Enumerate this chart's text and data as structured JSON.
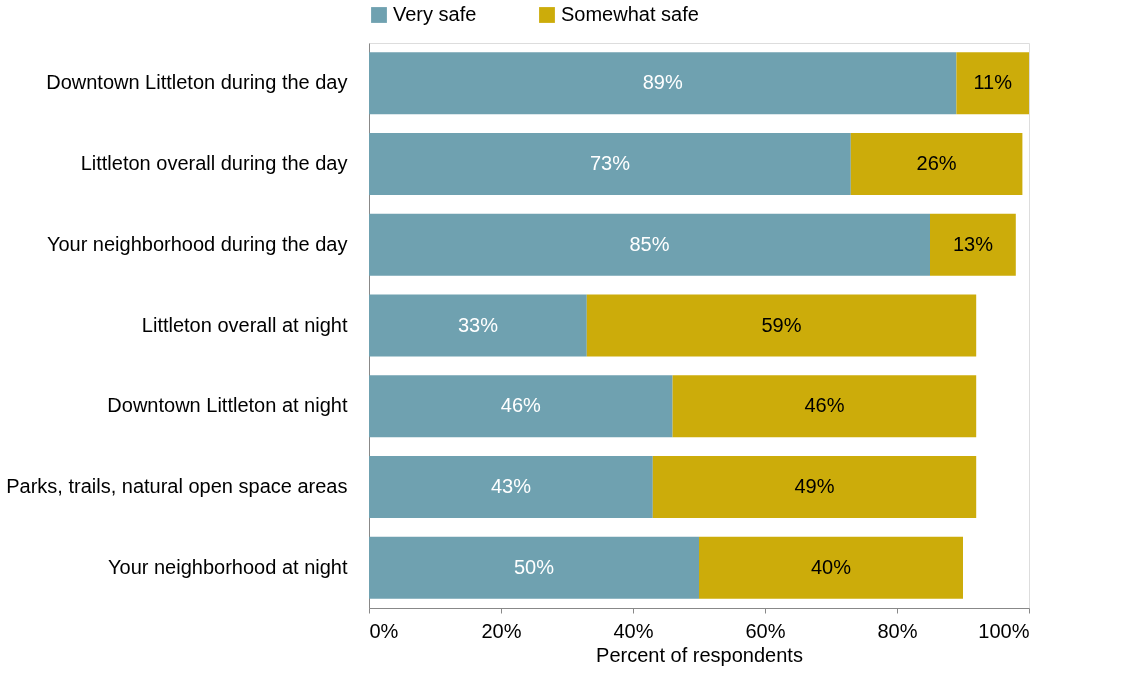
{
  "chart_data": {
    "type": "bar",
    "orientation": "horizontal",
    "stacked": true,
    "xlabel": "Percent of respondents",
    "legend": "top",
    "grid": false,
    "categories": [
      "Downtown Littleton during the day",
      "Littleton overall during the day",
      "Your neighborhood during the day",
      "Littleton overall at night",
      "Downtown Littleton at night",
      "Parks, trails, natural open space areas",
      "Your neighborhood at night"
    ],
    "series": [
      {
        "name": "Very safe",
        "color": "#6fa1b0",
        "values": [
          89,
          73,
          85,
          33,
          46,
          43,
          50
        ],
        "value_labels": [
          "89%",
          "73%",
          "85%",
          "33%",
          "46%",
          "43%",
          "50%"
        ]
      },
      {
        "name": "Somewhat safe",
        "color": "#ccac0a",
        "values": [
          11,
          26,
          13,
          59,
          46,
          49,
          40
        ],
        "value_labels": [
          "11%",
          "26%",
          "13%",
          "59%",
          "46%",
          "49%",
          "40%"
        ]
      }
    ],
    "xlim": [
      0,
      100
    ],
    "xticks": [
      {
        "value": 0,
        "label": "0%"
      },
      {
        "value": 20,
        "label": "20%"
      },
      {
        "value": 40,
        "label": "40%"
      },
      {
        "value": 60,
        "label": "60%"
      },
      {
        "value": 80,
        "label": "80%"
      },
      {
        "value": 100,
        "label": "100%"
      }
    ]
  }
}
